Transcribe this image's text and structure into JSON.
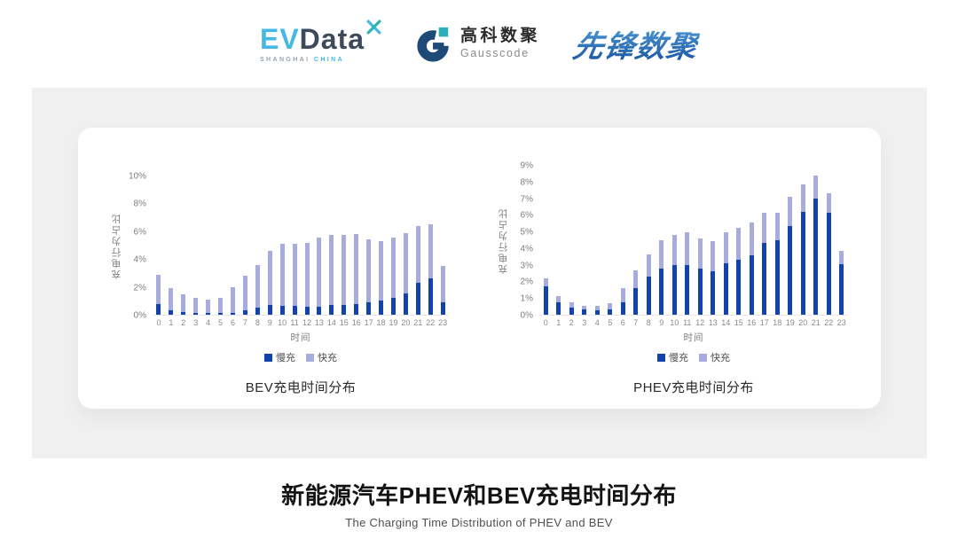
{
  "header": {
    "logos": {
      "evdata": {
        "ev": "EV",
        "data": "Data",
        "sub_left": "SHANGHAI",
        "sub_right": "CHINA"
      },
      "gausscode": {
        "cn": "高科数聚",
        "en": "Gausscode"
      },
      "xianfeng": {
        "text": "先锋数聚"
      }
    }
  },
  "colors": {
    "slow_charge": "#1243AC",
    "fast_charge": "#A6ADDC",
    "evdata_blue": "#45B8E4",
    "evdata_dark": "#3D4A5C",
    "gausscode_navy": "#1E4A78",
    "gausscode_teal": "#29B0B8",
    "xianfeng_blue": "#2F78BE",
    "panel_gray": "#F0F0F1"
  },
  "chart_data": [
    {
      "type": "bar",
      "stacked": true,
      "id": "bev",
      "title": "BEV充电时间分布",
      "xlabel": "时间",
      "ylabel": "充电行为占比",
      "ylim": [
        0,
        10
      ],
      "ytick_step": 2,
      "ytick_suffix": "%",
      "grid": false,
      "legend_position": "bottom",
      "categories": [
        0,
        1,
        2,
        3,
        4,
        5,
        6,
        7,
        8,
        9,
        10,
        11,
        12,
        13,
        14,
        15,
        16,
        17,
        18,
        19,
        20,
        21,
        22,
        23
      ],
      "series": [
        {
          "name": "慢充",
          "color": "#1243AC",
          "values": [
            0.8,
            0.35,
            0.2,
            0.15,
            0.1,
            0.1,
            0.15,
            0.35,
            0.5,
            0.7,
            0.65,
            0.65,
            0.55,
            0.6,
            0.7,
            0.7,
            0.8,
            0.9,
            1.05,
            1.2,
            1.55,
            2.3,
            2.65,
            0.9
          ]
        },
        {
          "name": "快充",
          "color": "#A6ADDC",
          "values": [
            2.1,
            1.55,
            1.3,
            1.05,
            1.0,
            1.15,
            1.85,
            2.45,
            3.1,
            3.9,
            4.5,
            4.5,
            4.65,
            5.0,
            5.1,
            5.1,
            5.05,
            4.55,
            4.25,
            4.4,
            4.35,
            4.1,
            3.9,
            2.65
          ]
        }
      ]
    },
    {
      "type": "bar",
      "stacked": true,
      "id": "phev",
      "title": "PHEV充电时间分布",
      "xlabel": "时间",
      "ylabel": "充电行为占比",
      "ylim": [
        0,
        9
      ],
      "ytick_step": 1,
      "ytick_suffix": "%",
      "grid": false,
      "legend_position": "bottom",
      "categories": [
        0,
        1,
        2,
        3,
        4,
        5,
        6,
        7,
        8,
        9,
        10,
        11,
        12,
        13,
        14,
        15,
        16,
        17,
        18,
        19,
        20,
        21,
        22,
        23
      ],
      "series": [
        {
          "name": "慢充",
          "color": "#1243AC",
          "values": [
            1.7,
            0.75,
            0.45,
            0.3,
            0.25,
            0.3,
            0.75,
            1.6,
            2.3,
            2.8,
            3.0,
            3.0,
            2.8,
            2.6,
            3.1,
            3.3,
            3.6,
            4.35,
            4.5,
            5.35,
            6.2,
            7.0,
            6.15,
            3.05
          ]
        },
        {
          "name": "快充",
          "color": "#A6ADDC",
          "values": [
            0.5,
            0.4,
            0.3,
            0.25,
            0.3,
            0.4,
            0.85,
            1.1,
            1.35,
            1.7,
            1.8,
            2.0,
            1.8,
            1.85,
            1.9,
            1.95,
            1.95,
            1.8,
            1.65,
            1.75,
            1.7,
            1.4,
            1.2,
            0.8
          ]
        }
      ]
    }
  ],
  "footer": {
    "title": "新能源汽车PHEV和BEV充电时间分布",
    "subtitle": "The Charging Time Distribution of PHEV and BEV"
  }
}
